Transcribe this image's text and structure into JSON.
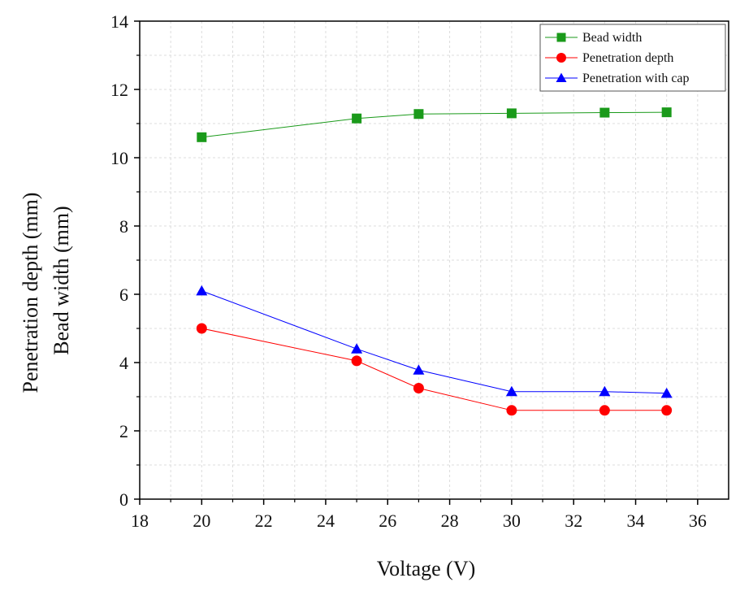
{
  "chart_data": {
    "type": "line",
    "title": "",
    "xlabel": "Voltage (V)",
    "ylabel": [
      "Penetration depth (mm)",
      "Bead width (mm)"
    ],
    "xlim": [
      18,
      37
    ],
    "ylim": [
      0,
      14
    ],
    "xticks": [
      18,
      20,
      22,
      24,
      26,
      28,
      30,
      32,
      34,
      36
    ],
    "yticks": [
      0,
      2,
      4,
      6,
      8,
      10,
      12,
      14
    ],
    "grid": true,
    "legend_position": "top-right",
    "x": [
      20,
      25,
      27,
      30,
      33,
      35
    ],
    "series": [
      {
        "name": "Bead width",
        "color": "#1a9a1a",
        "marker": "square",
        "values": [
          10.6,
          11.15,
          11.28,
          11.3,
          11.32,
          11.33
        ]
      },
      {
        "name": "Penetration depth",
        "color": "#ff0000",
        "marker": "circle",
        "values": [
          5.0,
          4.05,
          3.25,
          2.6,
          2.6,
          2.6
        ]
      },
      {
        "name": "Penetration with cap",
        "color": "#0000ff",
        "marker": "triangle",
        "values": [
          6.1,
          4.4,
          3.78,
          3.15,
          3.15,
          3.1
        ]
      }
    ]
  }
}
